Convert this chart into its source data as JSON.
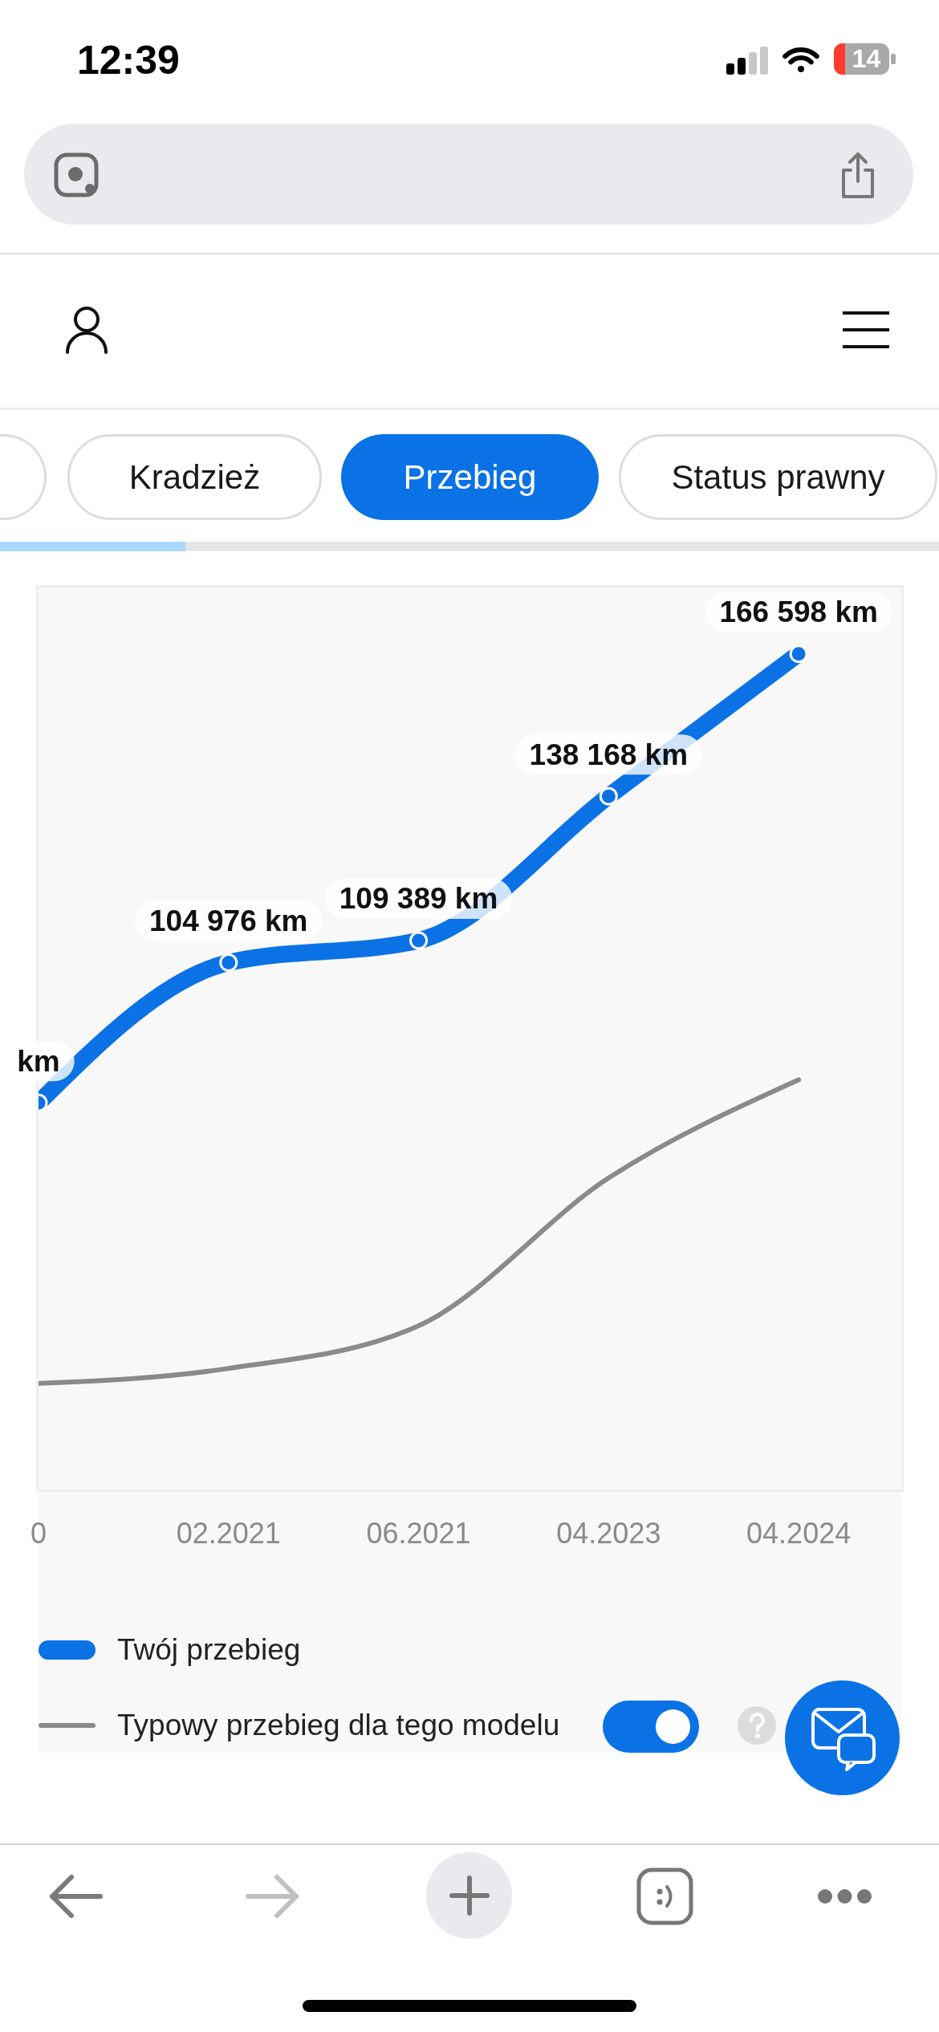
{
  "chart_data": {
    "type": "line",
    "categories": [
      "0",
      "02.2021",
      "06.2021",
      "04.2023",
      "04.2024"
    ],
    "series": [
      {
        "name": "Twój przebieg",
        "color": "#0b72e6",
        "values": [
          77000,
          104976,
          109389,
          138168,
          166598
        ],
        "value_labels": [
          "km",
          "104 976 km",
          "109 389 km",
          "138 168 km",
          "166 598 km"
        ],
        "marker": "circle"
      },
      {
        "name": "Typowy przebieg dla tego modelu",
        "color": "#8a8a8a",
        "values": [
          21000,
          24000,
          32500,
          62000,
          81600
        ],
        "marker": "none"
      }
    ],
    "tick_labels": "x",
    "legend": "bottom",
    "annotations": [
      "12:39",
      "14",
      "Kradzież",
      "Przebieg",
      "Status prawny"
    ]
  }
}
